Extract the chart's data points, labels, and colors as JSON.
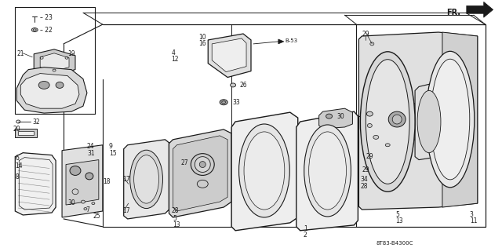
{
  "fig_width": 6.4,
  "fig_height": 3.16,
  "dpi": 100,
  "bg": "#ffffff",
  "lc": "#1a1a1a",
  "diagram_code": "8T83-B4300C",
  "fr_text": "FR.",
  "gray_light": "#cccccc",
  "gray_mid": "#aaaaaa",
  "gray_dark": "#888888"
}
